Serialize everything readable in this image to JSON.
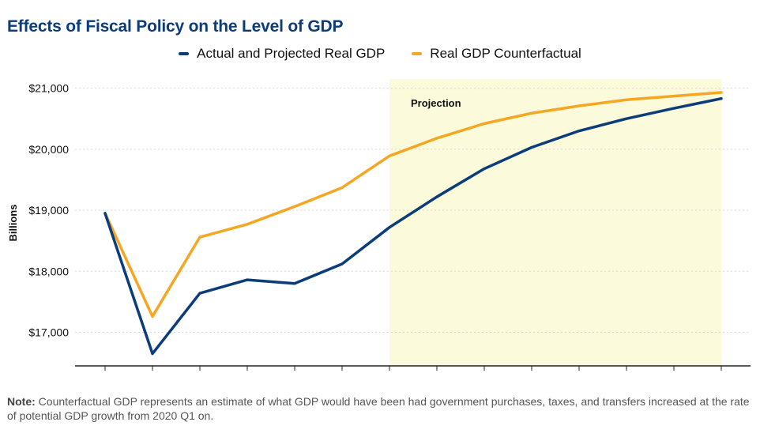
{
  "title": "Effects of Fiscal Policy on the Level of GDP",
  "note_label": "Note:",
  "note_text": " Counterfactual GDP represents an estimate of what GDP would have been had government purchases, taxes, and transfers increased at the rate of potential GDP growth from 2020 Q1 on.",
  "colors": {
    "actual": "#0b3d7a",
    "counterfactual": "#f5a623",
    "projection_band": "#fbfbdc"
  },
  "chart_data": {
    "type": "line",
    "title": "Effects of Fiscal Policy on the Level of GDP",
    "xlabel": "",
    "ylabel": "Billions",
    "x": [
      1,
      2,
      3,
      4,
      5,
      6,
      7,
      8,
      9,
      10,
      11,
      12,
      13,
      14
    ],
    "ylim": [
      16450,
      21150
    ],
    "yticks": [
      17000,
      18000,
      19000,
      20000,
      21000
    ],
    "ytick_labels": [
      "$17,000",
      "$18,000",
      "$19,000",
      "$20,000",
      "$21,000"
    ],
    "grid": true,
    "legend": "top-center",
    "projection": {
      "start_x": 7,
      "end_x": 14,
      "label": "Projection"
    },
    "series": [
      {
        "name": "Actual and Projected Real GDP",
        "values": [
          18950,
          16650,
          17640,
          17860,
          17800,
          18120,
          18720,
          19220,
          19680,
          20030,
          20300,
          20500,
          20670,
          20830
        ]
      },
      {
        "name": "Real GDP Counterfactual",
        "values": [
          18950,
          17260,
          18560,
          18770,
          19060,
          19370,
          19890,
          20180,
          20420,
          20590,
          20710,
          20810,
          20870,
          20930
        ]
      }
    ]
  }
}
